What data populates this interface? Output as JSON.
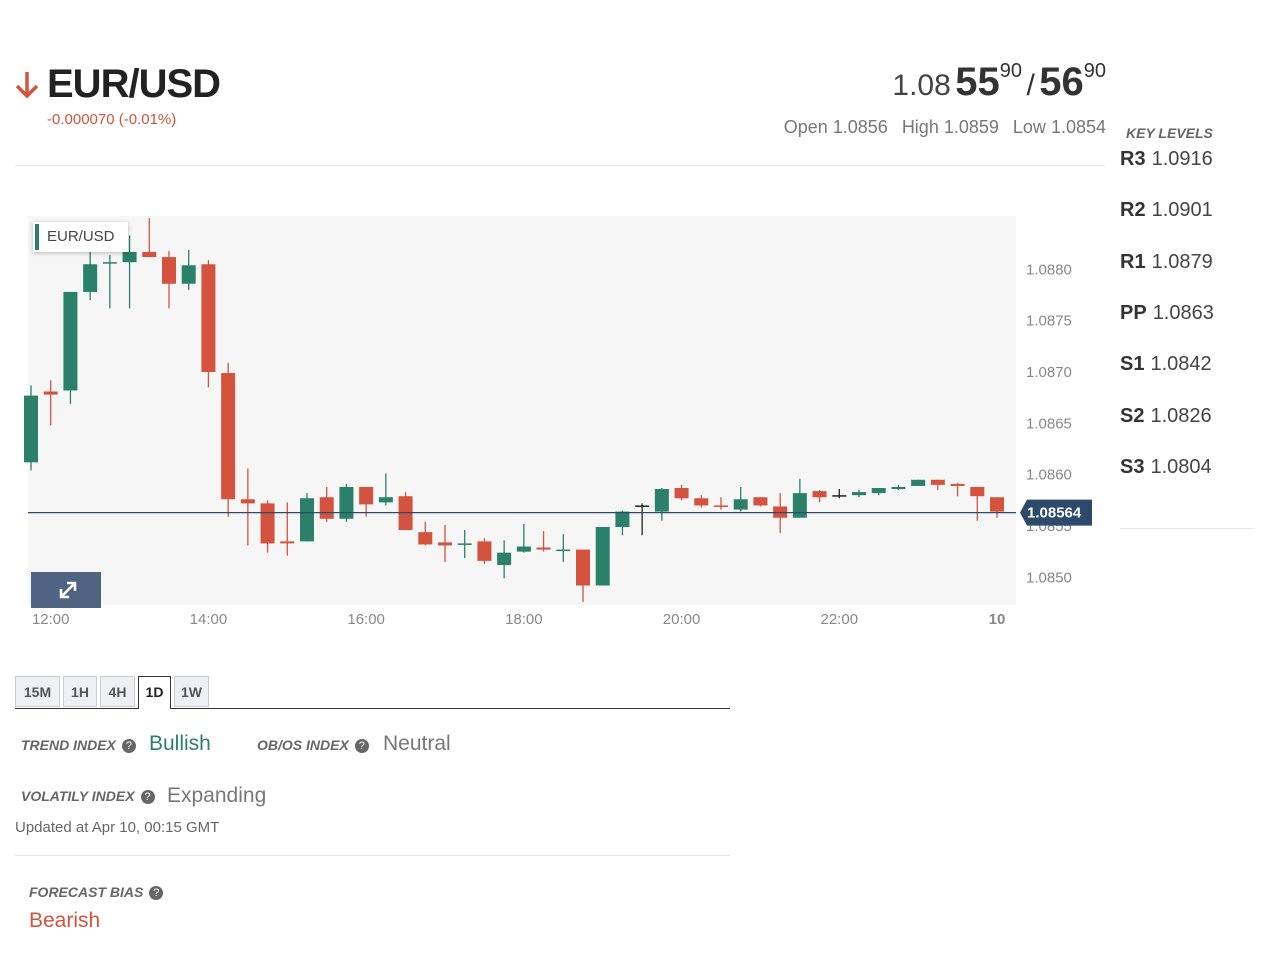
{
  "header": {
    "symbol": "EUR/USD",
    "change": "-0.000070 (-0.01%)",
    "bid": {
      "big": "1.08",
      "pips": "55",
      "fraction": "90"
    },
    "separator": "/",
    "ask": {
      "pips": "56",
      "fraction": "90"
    },
    "stats": [
      {
        "label": "Open",
        "value": "1.0856"
      },
      {
        "label": "High",
        "value": "1.0859"
      },
      {
        "label": "Low",
        "value": "1.0854"
      }
    ]
  },
  "key_levels": {
    "title": "KEY LEVELS",
    "levels": [
      {
        "name": "R3",
        "value": "1.0916"
      },
      {
        "name": "R2",
        "value": "1.0901"
      },
      {
        "name": "R1",
        "value": "1.0879"
      },
      {
        "name": "PP",
        "value": "1.0863"
      },
      {
        "name": "S1",
        "value": "1.0842"
      },
      {
        "name": "S2",
        "value": "1.0826"
      },
      {
        "name": "S3",
        "value": "1.0804"
      }
    ]
  },
  "chart_data": {
    "type": "candlestick",
    "categories": [
      null,
      "12:00",
      null,
      null,
      null,
      null,
      null,
      null,
      null,
      "14:00",
      null,
      null,
      null,
      null,
      null,
      null,
      null,
      "16:00",
      null,
      null,
      null,
      null,
      null,
      null,
      null,
      "18:00",
      null,
      null,
      null,
      null,
      null,
      null,
      null,
      "20:00",
      null,
      null,
      null,
      null,
      null,
      null,
      null,
      "22:00",
      null,
      null,
      null,
      null,
      null,
      null,
      null,
      "10"
    ],
    "series": [
      {
        "name": "EUR/USD",
        "up_color": "#2b8069",
        "down_color": "#d3533f",
        "flat_color": "#222222",
        "open": [
          1.08613,
          1.08682,
          1.08683,
          1.08779,
          1.08807,
          1.08808,
          1.08818,
          1.08813,
          1.08787,
          1.08806,
          1.087,
          1.08577,
          1.08573,
          1.08536,
          1.08536,
          1.08579,
          1.08558,
          1.08589,
          1.08574,
          1.0858,
          1.08545,
          1.08535,
          1.08533,
          1.08536,
          1.08513,
          1.08526,
          1.0853,
          1.08527,
          1.08528,
          1.08493,
          1.0855,
          1.08571,
          1.08565,
          1.08588,
          1.08578,
          1.08571,
          1.08567,
          1.08579,
          1.0857,
          1.08559,
          1.08585,
          1.08581,
          1.08581,
          1.08583,
          1.08587,
          1.0859,
          1.08596,
          1.08592,
          1.08589,
          1.08579
        ],
        "high": [
          1.08688,
          1.08693,
          1.08779,
          1.08818,
          1.08815,
          1.08834,
          1.08851,
          1.08819,
          1.0882,
          1.0881,
          1.0871,
          1.08607,
          1.08576,
          1.08574,
          1.08583,
          1.08589,
          1.08592,
          1.08589,
          1.08602,
          1.08584,
          1.08555,
          1.08552,
          1.08547,
          1.08539,
          1.08537,
          1.08553,
          1.08546,
          1.08543,
          1.08528,
          1.0855,
          1.08566,
          1.08573,
          1.08588,
          1.08591,
          1.08581,
          1.08579,
          1.08589,
          1.08579,
          1.08583,
          1.08597,
          1.08586,
          1.08587,
          1.08586,
          1.08588,
          1.08591,
          1.08596,
          1.08596,
          1.08593,
          1.08589,
          1.08579
        ],
        "low": [
          1.08605,
          1.08649,
          1.0867,
          1.08771,
          1.08763,
          1.08763,
          1.08813,
          1.08763,
          1.08781,
          1.08686,
          1.0856,
          1.08532,
          1.08525,
          1.08522,
          1.08536,
          1.08555,
          1.08555,
          1.0856,
          1.08571,
          1.08547,
          1.08532,
          1.08516,
          1.0852,
          1.08514,
          1.085,
          1.08525,
          1.08526,
          1.08516,
          1.08477,
          1.08493,
          1.08542,
          1.08542,
          1.08556,
          1.08576,
          1.08569,
          1.08567,
          1.08565,
          1.0857,
          1.08544,
          1.08559,
          1.08574,
          1.08578,
          1.08579,
          1.08581,
          1.08586,
          1.0859,
          1.08586,
          1.0858,
          1.08556,
          1.08559
        ],
        "close": [
          1.08678,
          1.08679,
          1.08779,
          1.08806,
          1.08808,
          1.08818,
          1.08813,
          1.08787,
          1.08805,
          1.08701,
          1.08577,
          1.08573,
          1.08534,
          1.08534,
          1.08578,
          1.08558,
          1.08589,
          1.08572,
          1.08579,
          1.08547,
          1.08533,
          1.08532,
          1.08534,
          1.08517,
          1.08525,
          1.08531,
          1.08528,
          1.08528,
          1.08493,
          1.0855,
          1.08565,
          1.08571,
          1.08587,
          1.08578,
          1.08571,
          1.0857,
          1.08577,
          1.08571,
          1.08559,
          1.08583,
          1.08579,
          1.08581,
          1.08584,
          1.08588,
          1.08589,
          1.08596,
          1.08591,
          1.0859,
          1.0858,
          1.08565
        ]
      }
    ],
    "ylim": [
      1.08474,
      1.08853
    ],
    "yticks": [
      {
        "value": 1.085,
        "label": "1.0850"
      },
      {
        "value": 1.0855,
        "label": "1.0855"
      },
      {
        "value": 1.086,
        "label": "1.0860"
      },
      {
        "value": 1.0865,
        "label": "1.0865"
      },
      {
        "value": 1.087,
        "label": "1.0870"
      },
      {
        "value": 1.0875,
        "label": "1.0875"
      },
      {
        "value": 1.088,
        "label": "1.0880"
      }
    ],
    "grid": false,
    "last_price": 1.08564,
    "last_price_color": "#2d4a6b"
  },
  "timeframes": {
    "options": [
      "15M",
      "1H",
      "4H",
      "1D",
      "1W"
    ],
    "active": 3
  },
  "indicators": [
    {
      "label": "TREND INDEX",
      "value": "Bullish"
    },
    {
      "label": "OB/OS INDEX",
      "value": "Neutral"
    },
    {
      "label": "VOLATILY INDEX",
      "value": "Expanding"
    }
  ],
  "updated": "Updated at Apr 10, 00:15 GMT",
  "forecast": {
    "label": "FORECAST BIAS",
    "value": "Bearish"
  }
}
